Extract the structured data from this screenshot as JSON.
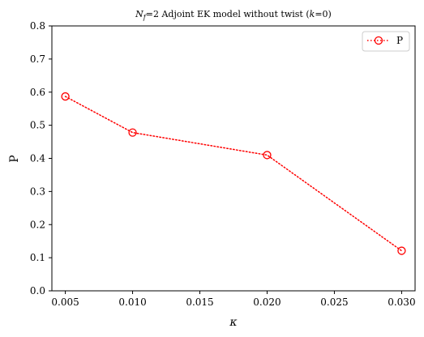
{
  "chart_data": {
    "type": "line",
    "title": "N_f=2  Adjoint EK model without twist (k=0)",
    "title_parts": {
      "prefix_italic": "N",
      "prefix_sub": "f",
      "prefix_rest": "=2  Adjoint EK model without twist (",
      "k_italic": "k",
      "k_rest": "=0)"
    },
    "xlabel": "κ",
    "ylabel": "P",
    "xlim": [
      0.004,
      0.031
    ],
    "ylim": [
      0.0,
      0.8
    ],
    "xticks": [
      "0.005",
      "0.010",
      "0.015",
      "0.020",
      "0.025",
      "0.030"
    ],
    "yticks": [
      "0.0",
      "0.1",
      "0.2",
      "0.3",
      "0.4",
      "0.5",
      "0.6",
      "0.7",
      "0.8"
    ],
    "grid": false,
    "legend_position": "top-right",
    "series": [
      {
        "name": "P",
        "color": "#ff0000",
        "line_style": "dotted",
        "marker": "open-circle",
        "x": [
          0.005,
          0.01,
          0.02,
          0.03
        ],
        "y": [
          0.587,
          0.478,
          0.41,
          0.121
        ]
      }
    ]
  }
}
